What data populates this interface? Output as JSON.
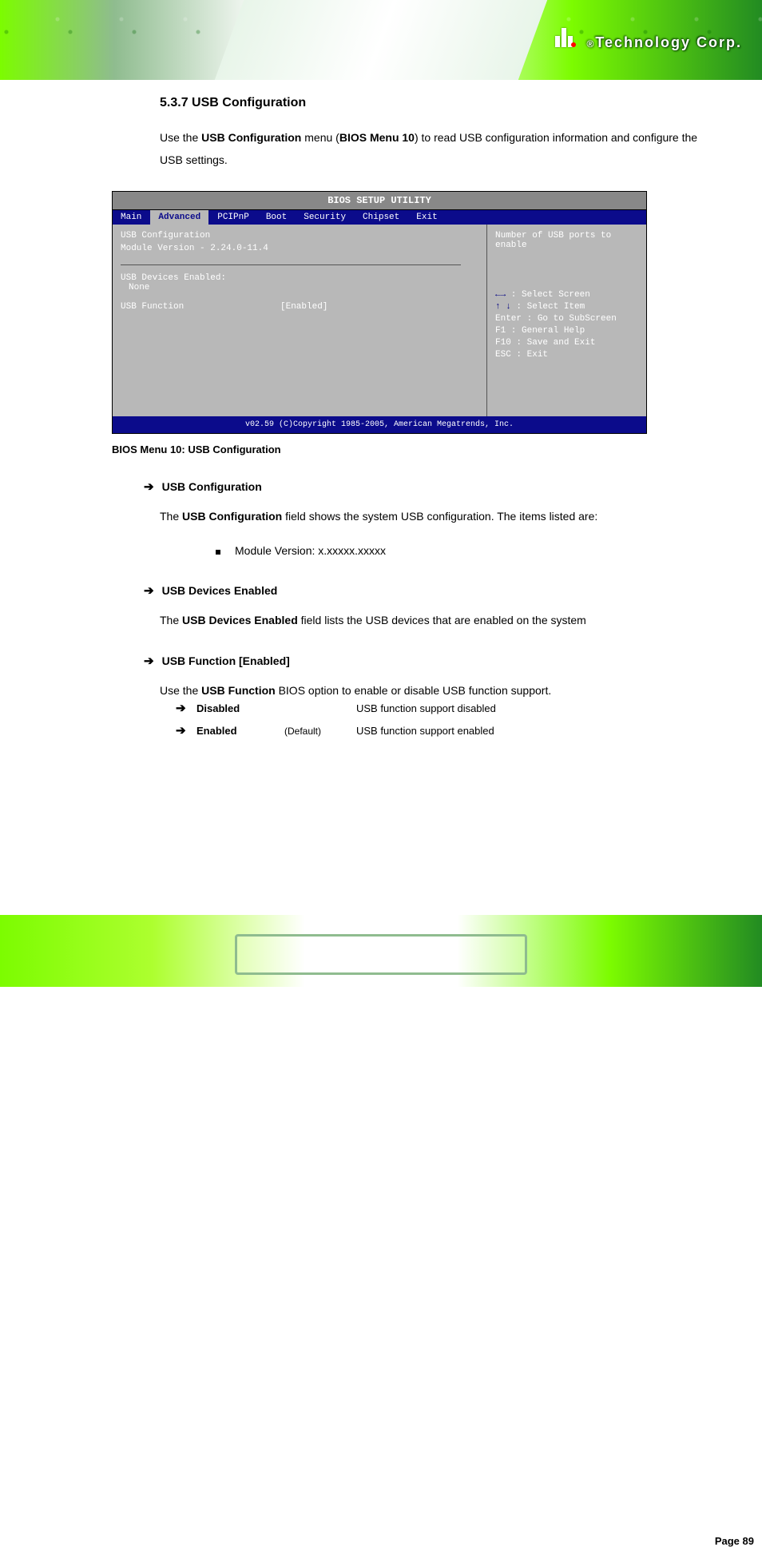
{
  "company": "Technology Corp.",
  "section": {
    "number": "5.3.7",
    "title": "USB Configuration"
  },
  "intro": {
    "pre": "Use the ",
    "bold": "USB Configuration",
    "mid": " menu (",
    "ref": "BIOS Menu 10",
    "post": ") to read USB configuration information and configure the USB settings."
  },
  "bios": {
    "title": "BIOS SETUP UTILITY",
    "tabs": [
      "Main",
      "Advanced",
      "PCIPnP",
      "Boot",
      "Security",
      "Chipset",
      "Exit"
    ],
    "active_tab": 1,
    "heading": "USB Configuration",
    "module_label": "Module Version - 2.24.0-11.4",
    "devices_label": "USB Devices Enabled:",
    "devices_value": "None",
    "field_label": "USB Function",
    "field_value": "[Enabled]",
    "help": {
      "desc": "Number of USB ports to enable",
      "lines": [
        {
          "key": "←→",
          "txt": ": Select Screen",
          "is_arrow": true
        },
        {
          "key": "↑ ↓",
          "txt": ": Select Item",
          "is_arrow": true
        },
        {
          "key": "Enter",
          "txt": ": Go to SubScreen",
          "is_arrow": false
        },
        {
          "key": "F1",
          "txt": ": General Help",
          "is_arrow": false
        },
        {
          "key": "F10",
          "txt": ": Save and Exit",
          "is_arrow": false
        },
        {
          "key": "ESC",
          "txt": ": Exit",
          "is_arrow": false
        }
      ]
    },
    "footer": "v02.59 (C)Copyright 1985-2005, American Megatrends, Inc."
  },
  "caption": "BIOS Menu 10: USB Configuration",
  "items": [
    {
      "heading": "USB Configuration",
      "text_pre": "The ",
      "text_bold": "USB Configuration",
      "text_post": " field shows the system USB configuration. The items listed are:",
      "sub": "Module Version: x.xxxxx.xxxxx"
    },
    {
      "heading": "USB Devices Enabled",
      "text_pre": "The ",
      "text_bold": "USB Devices Enabled",
      "text_post": " field lists the USB devices that are enabled on the system"
    },
    {
      "heading": "USB Function [Enabled]",
      "text_pre": "Use the ",
      "text_bold": "USB Function",
      "text_post": " BIOS option to enable or disable USB function support.",
      "options": [
        {
          "label": "Disabled",
          "default": "",
          "desc": "USB function support disabled"
        },
        {
          "label": "Enabled",
          "default": "(Default)",
          "desc": "USB function support enabled"
        }
      ]
    }
  ],
  "page": "Page 89",
  "colors": {
    "bios_blue": "#0b0b8b",
    "bios_gray": "#b8b8b8",
    "bios_titlegray": "#888888",
    "arrow_navy": "#000080",
    "green_light": "#7cfc00",
    "green_dark": "#228b22"
  },
  "font_sizes": {
    "body": 14,
    "bios": 11,
    "caption": 13
  }
}
